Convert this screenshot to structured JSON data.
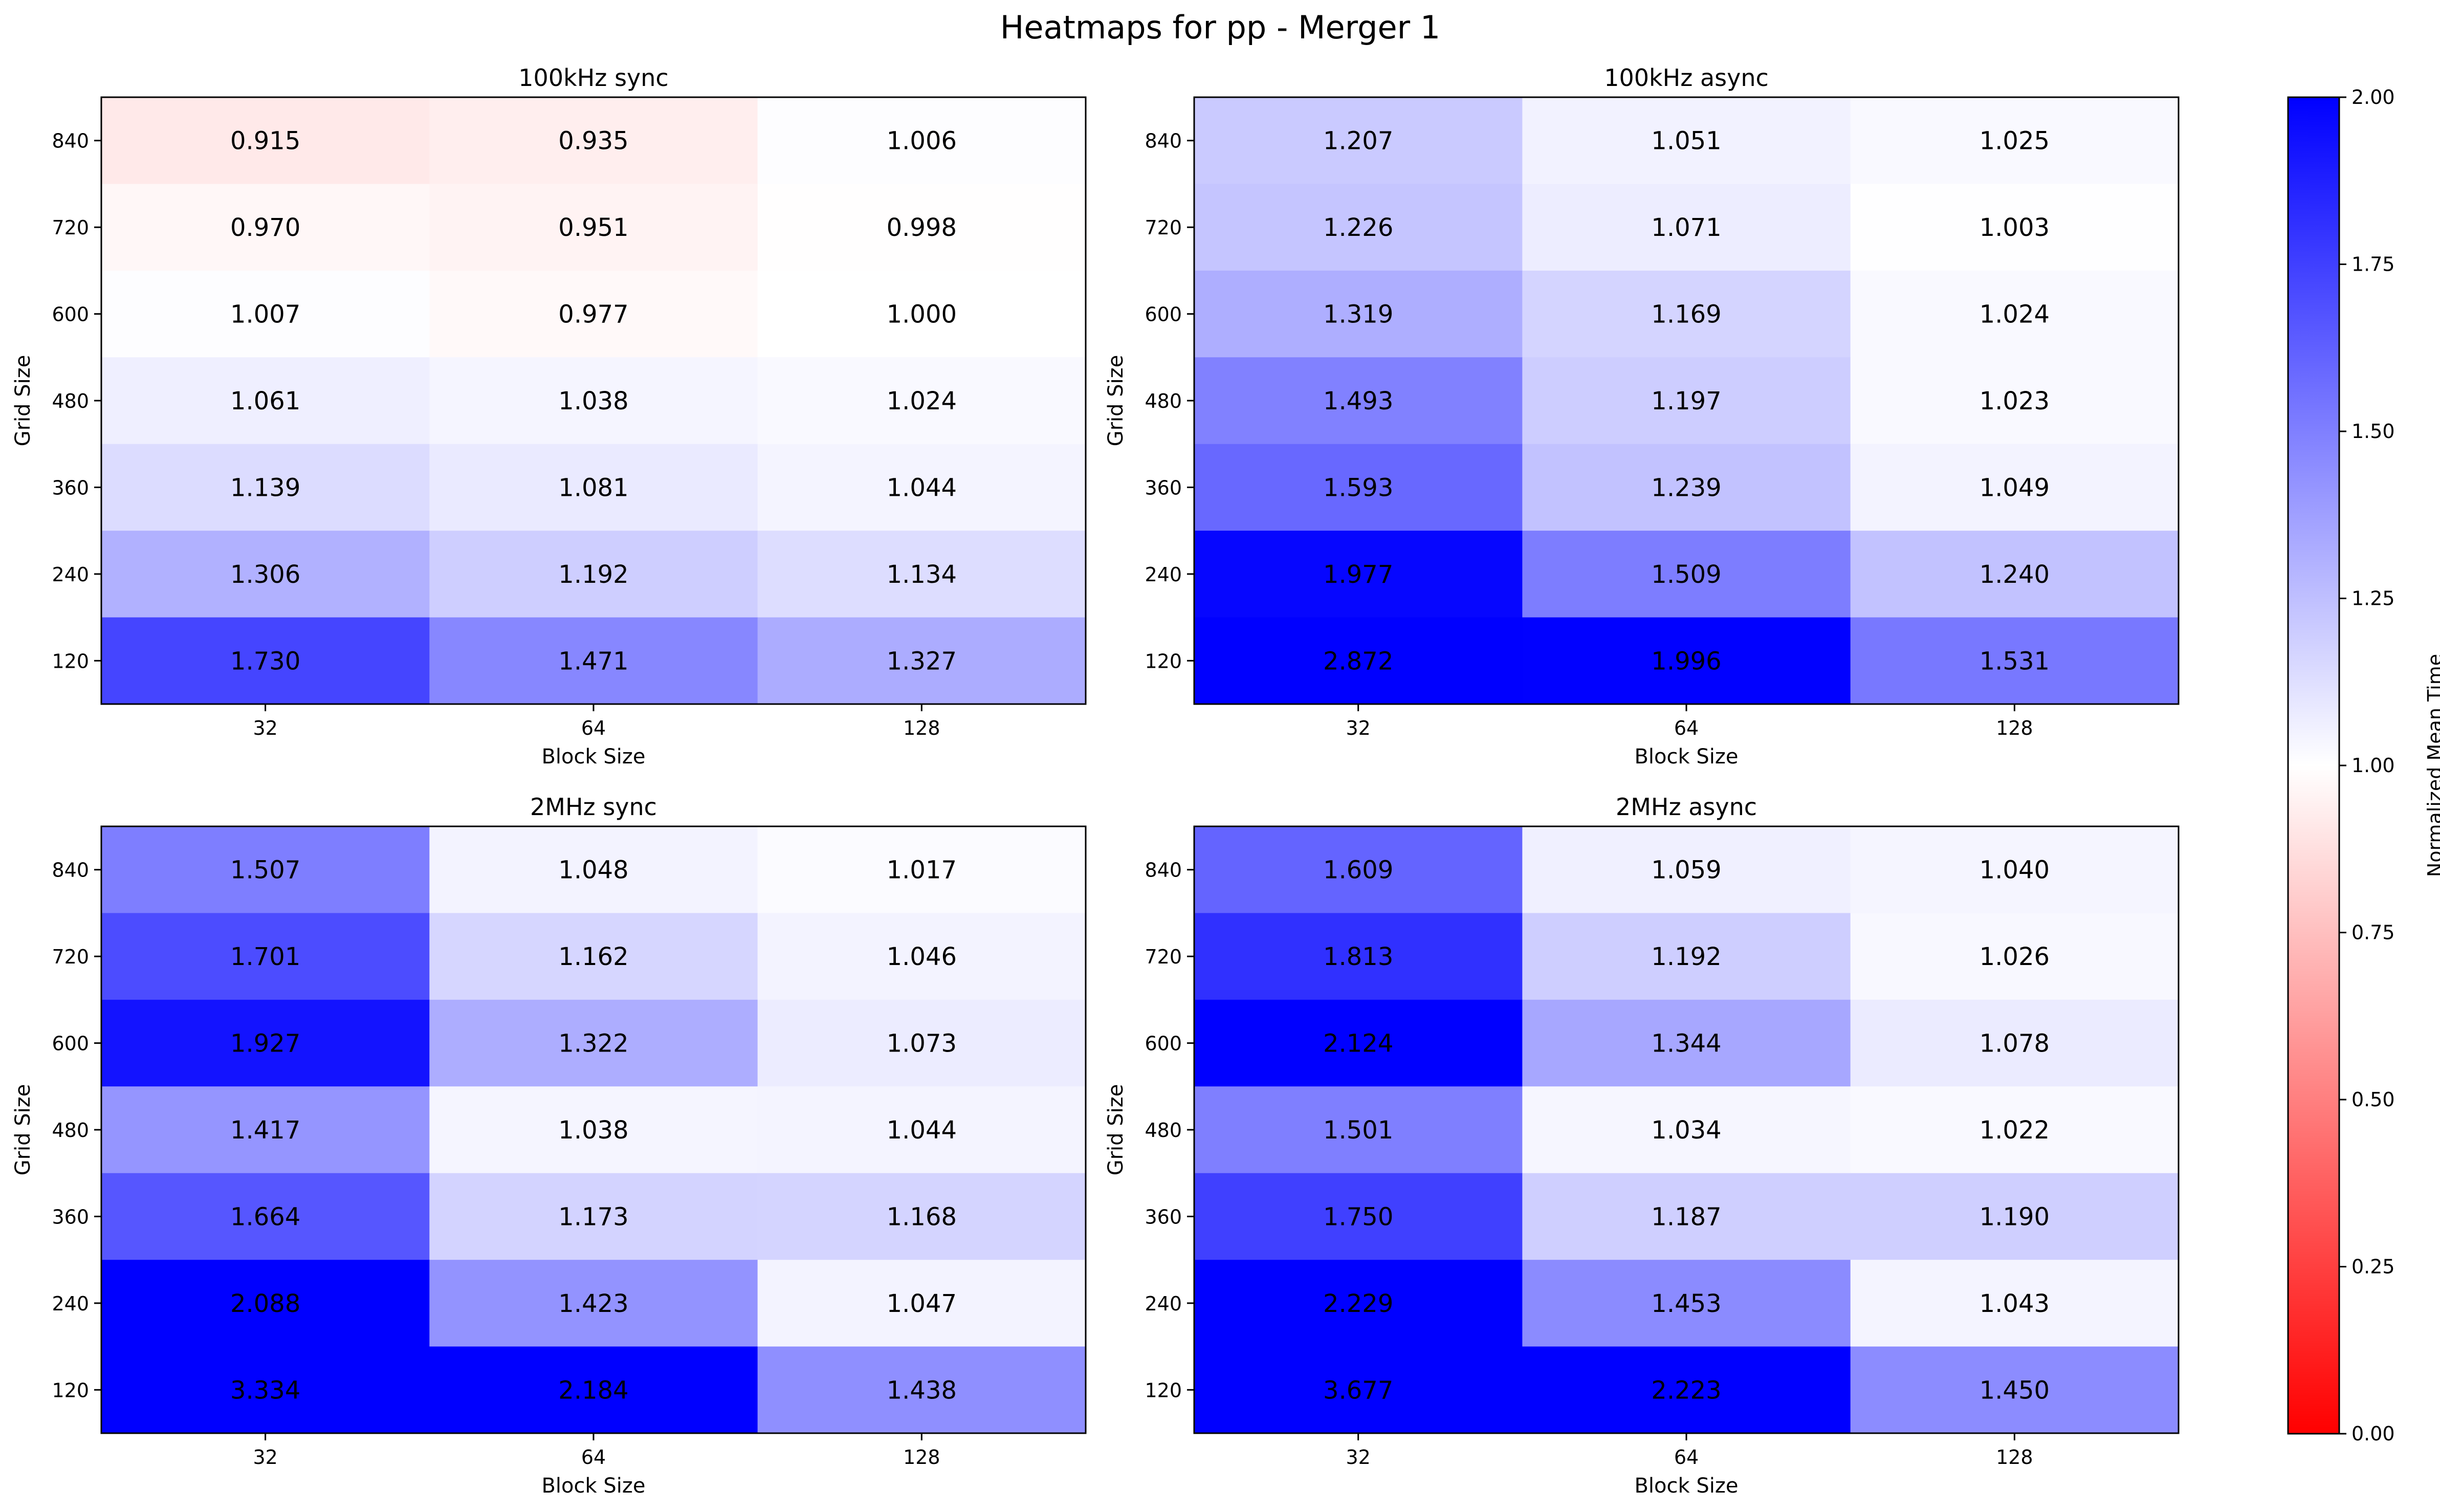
{
  "figure": {
    "title": "Heatmaps for pp - Merger 1"
  },
  "colorbar": {
    "label": "Normalized Mean Time",
    "min": 0.0,
    "max": 2.0,
    "ticks": [
      "0.00",
      "0.25",
      "0.50",
      "0.75",
      "1.00",
      "1.25",
      "1.50",
      "1.75",
      "2.00"
    ],
    "colormap": [
      "#ff0000",
      "#ffffff",
      "#0000ff"
    ]
  },
  "chart_data": [
    {
      "type": "heatmap",
      "title": "100kHz sync",
      "xlabel": "Block Size",
      "ylabel": "Grid Size",
      "x": [
        "32",
        "64",
        "128"
      ],
      "y": [
        "840",
        "720",
        "600",
        "480",
        "360",
        "240",
        "120"
      ],
      "values": [
        [
          0.915,
          0.935,
          1.006
        ],
        [
          0.97,
          0.951,
          0.998
        ],
        [
          1.007,
          0.977,
          1.0
        ],
        [
          1.061,
          1.038,
          1.024
        ],
        [
          1.139,
          1.081,
          1.044
        ],
        [
          1.306,
          1.192,
          1.134
        ],
        [
          1.73,
          1.471,
          1.327
        ]
      ],
      "vmin": 0.0,
      "vmax": 2.0
    },
    {
      "type": "heatmap",
      "title": "100kHz async",
      "xlabel": "Block Size",
      "ylabel": "Grid Size",
      "x": [
        "32",
        "64",
        "128"
      ],
      "y": [
        "840",
        "720",
        "600",
        "480",
        "360",
        "240",
        "120"
      ],
      "values": [
        [
          1.207,
          1.051,
          1.025
        ],
        [
          1.226,
          1.071,
          1.003
        ],
        [
          1.319,
          1.169,
          1.024
        ],
        [
          1.493,
          1.197,
          1.023
        ],
        [
          1.593,
          1.239,
          1.049
        ],
        [
          1.977,
          1.509,
          1.24
        ],
        [
          2.872,
          1.996,
          1.531
        ]
      ],
      "vmin": 0.0,
      "vmax": 2.0
    },
    {
      "type": "heatmap",
      "title": "2MHz sync",
      "xlabel": "Block Size",
      "ylabel": "Grid Size",
      "x": [
        "32",
        "64",
        "128"
      ],
      "y": [
        "840",
        "720",
        "600",
        "480",
        "360",
        "240",
        "120"
      ],
      "values": [
        [
          1.507,
          1.048,
          1.017
        ],
        [
          1.701,
          1.162,
          1.046
        ],
        [
          1.927,
          1.322,
          1.073
        ],
        [
          1.417,
          1.038,
          1.044
        ],
        [
          1.664,
          1.173,
          1.168
        ],
        [
          2.088,
          1.423,
          1.047
        ],
        [
          3.334,
          2.184,
          1.438
        ]
      ],
      "vmin": 0.0,
      "vmax": 2.0
    },
    {
      "type": "heatmap",
      "title": "2MHz async",
      "xlabel": "Block Size",
      "ylabel": "Grid Size",
      "x": [
        "32",
        "64",
        "128"
      ],
      "y": [
        "840",
        "720",
        "600",
        "480",
        "360",
        "240",
        "120"
      ],
      "values": [
        [
          1.609,
          1.059,
          1.04
        ],
        [
          1.813,
          1.192,
          1.026
        ],
        [
          2.124,
          1.344,
          1.078
        ],
        [
          1.501,
          1.034,
          1.022
        ],
        [
          1.75,
          1.187,
          1.19
        ],
        [
          2.229,
          1.453,
          1.043
        ],
        [
          3.677,
          2.223,
          1.45
        ]
      ],
      "vmin": 0.0,
      "vmax": 2.0
    }
  ]
}
